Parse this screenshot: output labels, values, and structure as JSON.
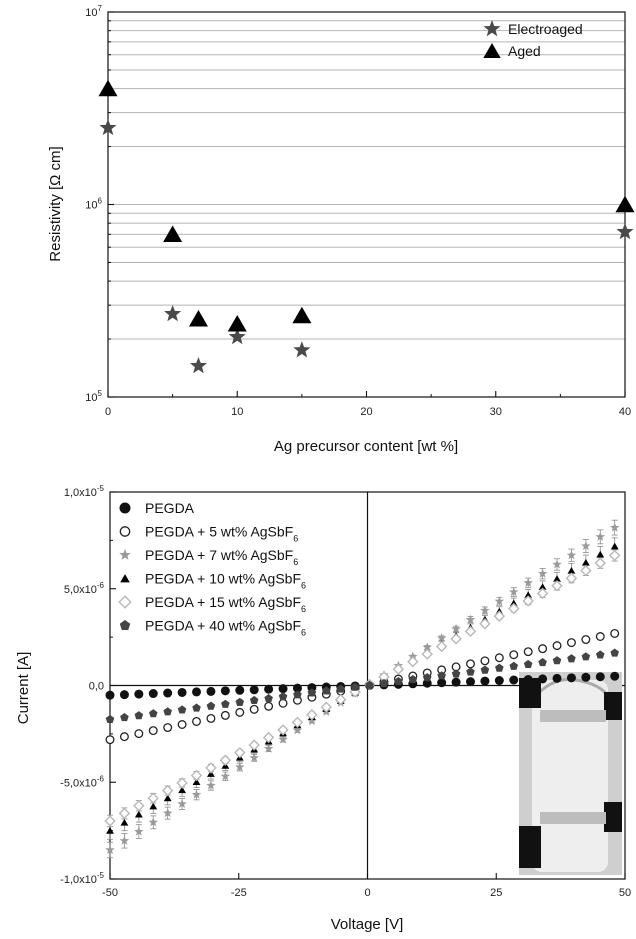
{
  "chart_data": [
    {
      "type": "scatter",
      "xlabel": "Ag precursor content [wt %]",
      "ylabel": "Resistivity [Ω cm]",
      "xlim": [
        0,
        40
      ],
      "ylim": [
        100000,
        10000000
      ],
      "yscale": "log",
      "x_ticks": [
        "0",
        "10",
        "20",
        "30",
        "40"
      ],
      "y_ticks": [
        {
          "base": "10",
          "exp": "5"
        },
        {
          "base": "10",
          "exp": "6"
        },
        {
          "base": "10",
          "exp": "7"
        }
      ],
      "grid": "horizontal",
      "legend_position": "top-right",
      "series": [
        {
          "name": "Electroaged",
          "marker": "star",
          "color": "#4a4a4a",
          "x": [
            0,
            5,
            7,
            10,
            15,
            40
          ],
          "y": [
            2500000,
            270000,
            145000,
            205000,
            175000,
            720000
          ]
        },
        {
          "name": "Aged",
          "marker": "triangle",
          "color": "#000000",
          "x": [
            0,
            5,
            7,
            10,
            15,
            40
          ],
          "y": [
            4000000,
            700000,
            255000,
            240000,
            265000,
            1000000
          ]
        }
      ]
    },
    {
      "type": "scatter",
      "xlabel": "Voltage [V]",
      "ylabel": "Current [A]",
      "xlim": [
        -50,
        50
      ],
      "ylim": [
        -1e-05,
        1e-05
      ],
      "x_ticks": [
        "-50",
        "-25",
        "0",
        "25",
        "50"
      ],
      "y_ticks": [
        {
          "base": "-1,0x10",
          "exp": "-5"
        },
        {
          "base": "-5,0x10",
          "exp": "-6"
        },
        {
          "base": "0,0",
          "exp": ""
        },
        {
          "base": "5,0x10",
          "exp": "-6"
        },
        {
          "base": "1,0x10",
          "exp": "-5"
        }
      ],
      "legend_position": "top-left",
      "series": [
        {
          "name": "PEGDA",
          "sub": "",
          "marker": "filled-circle",
          "color": "#111111",
          "slope": 0.01,
          "err": 0
        },
        {
          "name": "PEGDA + 5 wt% AgSbF",
          "sub": "6",
          "marker": "open-circle",
          "color": "#222222",
          "slope": 0.056,
          "err": 0.012
        },
        {
          "name": "PEGDA + 7 wt% AgSbF",
          "sub": "6",
          "marker": "star",
          "color": "#9a9a9a",
          "slope": 0.17,
          "err": 0.08
        },
        {
          "name": "PEGDA + 10 wt% AgSbF",
          "sub": "6",
          "marker": "filled-triangle",
          "color": "#000000",
          "slope": 0.15,
          "err": 0.09
        },
        {
          "name": "PEGDA + 15 wt% AgSbF",
          "sub": "6",
          "marker": "open-diamond",
          "color": "#b8b8b8",
          "slope": 0.14,
          "err": 0.06
        },
        {
          "name": "PEGDA + 40 wt% AgSbF",
          "sub": "6",
          "marker": "pentagon",
          "color": "#444444",
          "slope": 0.035,
          "err": 0.006
        }
      ]
    }
  ]
}
